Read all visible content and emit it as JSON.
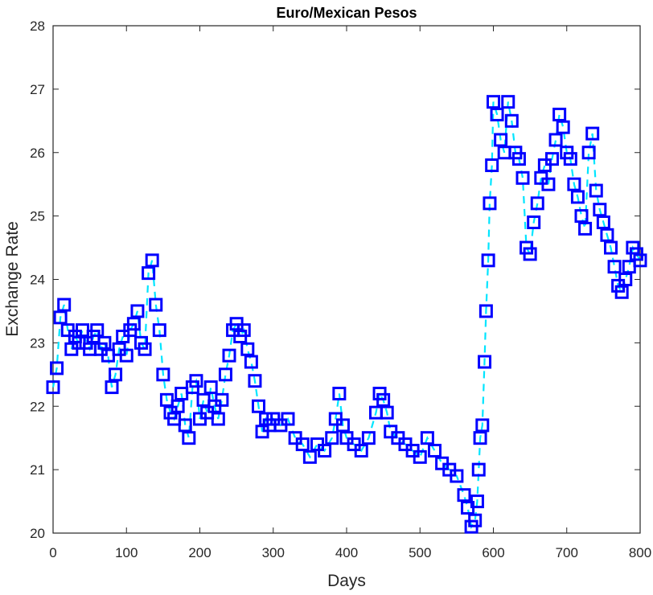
{
  "chart_data": {
    "type": "line",
    "title": "Euro/Mexican Pesos",
    "xlabel": "Days",
    "ylabel": "Exchange Rate",
    "xlim": [
      0,
      800
    ],
    "ylim": [
      20,
      28
    ],
    "xticks": [
      "0",
      "100",
      "200",
      "300",
      "400",
      "500",
      "600",
      "700",
      "800"
    ],
    "yticks": [
      "20",
      "21",
      "22",
      "23",
      "24",
      "25",
      "26",
      "27",
      "28"
    ],
    "grid": false,
    "series": [
      {
        "line_color": "#00e5ff",
        "line_style": "dashed",
        "marker": "square",
        "marker_color": "#0000ff",
        "x": [
          0,
          5,
          10,
          15,
          20,
          25,
          30,
          35,
          40,
          45,
          50,
          55,
          60,
          65,
          70,
          75,
          80,
          85,
          90,
          95,
          100,
          105,
          110,
          115,
          120,
          125,
          130,
          135,
          140,
          145,
          150,
          155,
          160,
          165,
          170,
          175,
          180,
          185,
          190,
          195,
          200,
          205,
          210,
          215,
          220,
          225,
          230,
          235,
          240,
          245,
          250,
          255,
          260,
          265,
          270,
          275,
          280,
          285,
          290,
          295,
          300,
          310,
          320,
          330,
          340,
          350,
          360,
          370,
          380,
          385,
          390,
          395,
          400,
          410,
          420,
          430,
          440,
          445,
          450,
          455,
          460,
          470,
          480,
          490,
          500,
          510,
          520,
          530,
          540,
          550,
          560,
          565,
          570,
          575,
          578,
          580,
          582,
          585,
          588,
          590,
          593,
          595,
          598,
          600,
          605,
          610,
          615,
          620,
          625,
          630,
          635,
          640,
          645,
          650,
          655,
          660,
          665,
          670,
          675,
          680,
          685,
          690,
          695,
          700,
          705,
          710,
          715,
          720,
          725,
          730,
          735,
          740,
          745,
          750,
          755,
          760,
          765,
          770,
          775,
          780,
          785,
          790,
          795,
          800
        ],
        "y": [
          22.3,
          22.6,
          23.4,
          23.6,
          23.2,
          22.9,
          23.1,
          23.0,
          23.2,
          23.0,
          22.9,
          23.1,
          23.2,
          22.9,
          23.0,
          22.8,
          22.3,
          22.5,
          22.9,
          23.1,
          22.8,
          23.2,
          23.3,
          23.5,
          23.0,
          22.9,
          24.1,
          24.3,
          23.6,
          23.2,
          22.5,
          22.1,
          21.9,
          21.8,
          22.0,
          22.2,
          21.7,
          21.5,
          22.3,
          22.4,
          21.8,
          22.1,
          21.9,
          22.3,
          22.0,
          21.8,
          22.1,
          22.5,
          22.8,
          23.2,
          23.3,
          23.1,
          23.2,
          22.9,
          22.7,
          22.4,
          22.0,
          21.6,
          21.8,
          21.7,
          21.8,
          21.7,
          21.8,
          21.5,
          21.4,
          21.2,
          21.4,
          21.3,
          21.5,
          21.8,
          22.2,
          21.7,
          21.5,
          21.4,
          21.3,
          21.5,
          21.9,
          22.2,
          22.1,
          21.9,
          21.6,
          21.5,
          21.4,
          21.3,
          21.2,
          21.5,
          21.3,
          21.1,
          21.0,
          20.9,
          20.6,
          20.4,
          20.1,
          20.2,
          20.5,
          21.0,
          21.5,
          21.7,
          22.7,
          23.5,
          24.3,
          25.2,
          25.8,
          26.8,
          26.6,
          26.2,
          26.0,
          26.8,
          26.5,
          26.0,
          25.9,
          25.6,
          24.5,
          24.4,
          24.9,
          25.2,
          25.6,
          25.8,
          25.5,
          25.9,
          26.2,
          26.6,
          26.4,
          26.0,
          25.9,
          25.5,
          25.3,
          25.0,
          24.8,
          26.0,
          26.3,
          25.4,
          25.1,
          24.9,
          24.7,
          24.5,
          24.2,
          23.9,
          23.8,
          24.0,
          24.2,
          24.5,
          24.4,
          24.3
        ]
      }
    ]
  }
}
